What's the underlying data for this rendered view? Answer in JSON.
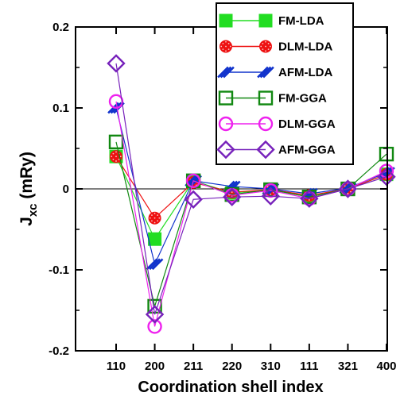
{
  "chart_data": {
    "type": "line",
    "xlabel": "Coordination shell index",
    "ylabel_main": "J",
    "ylabel_sub": "xc",
    "ylabel_unit": " (mRy)",
    "categories": [
      "110",
      "200",
      "211",
      "220",
      "310",
      "111",
      "321",
      "400"
    ],
    "ylim": [
      -0.2,
      0.2
    ],
    "yticks": [
      -0.2,
      -0.1,
      0,
      0.1,
      0.2
    ],
    "ytick_labels": [
      "-0.2",
      "-0.1",
      "0",
      "0.1",
      "0.2"
    ],
    "zero_line": true,
    "legend_placement": "top-right",
    "series": [
      {
        "name": "FM-LDA",
        "color": "#22dd22",
        "marker": "filled-square",
        "values": [
          0.04,
          -0.062,
          0.01,
          -0.005,
          -0.001,
          -0.01,
          0.0,
          0.018
        ]
      },
      {
        "name": "DLM-LDA",
        "color": "#ee1111",
        "marker": "dotted-circle",
        "values": [
          0.04,
          -0.036,
          0.008,
          -0.004,
          -0.001,
          -0.008,
          0.0,
          0.018
        ]
      },
      {
        "name": "AFM-LDA",
        "color": "#1133cc",
        "marker": "slash",
        "values": [
          0.1,
          -0.093,
          0.01,
          0.003,
          0.0,
          -0.006,
          0.001,
          0.02
        ]
      },
      {
        "name": "FM-GGA",
        "color": "#118811",
        "marker": "open-square",
        "values": [
          0.058,
          -0.145,
          0.01,
          -0.007,
          -0.001,
          -0.01,
          0.0,
          0.043
        ]
      },
      {
        "name": "DLM-GGA",
        "color": "#ee22ee",
        "marker": "open-circle",
        "values": [
          0.108,
          -0.17,
          0.01,
          -0.008,
          -0.002,
          -0.012,
          0.0,
          0.022
        ]
      },
      {
        "name": "AFM-GGA",
        "color": "#7722bb",
        "marker": "open-diamond",
        "values": [
          0.155,
          -0.155,
          -0.013,
          -0.01,
          -0.009,
          -0.012,
          0.0,
          0.015
        ]
      }
    ]
  }
}
